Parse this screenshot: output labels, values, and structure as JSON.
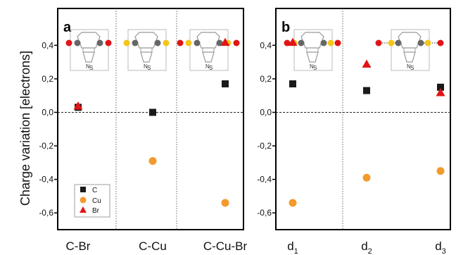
{
  "figure": {
    "ylabel": "Charge variation [electrons]",
    "colors": {
      "C": "#1a1a1a",
      "Cu": "#f39a2d",
      "Br": "#e11515",
      "ring": "#777777"
    }
  },
  "chart_data": [
    {
      "type": "scatter",
      "panel": "a",
      "categories": [
        "C-Br",
        "C-Cu",
        "C-Cu-Br"
      ],
      "ylim": [
        -0.7,
        0.62
      ],
      "yticks": [
        "0,4",
        "0,2",
        "0,0",
        "-0,2",
        "-0,4",
        "-0,6"
      ],
      "ytick_values": [
        0.4,
        0.2,
        0.0,
        -0.2,
        -0.4,
        -0.6
      ],
      "series": [
        {
          "name": "C",
          "marker": "square",
          "values": [
            0.03,
            0.0,
            0.17
          ]
        },
        {
          "name": "Cu",
          "marker": "circle",
          "values": [
            null,
            -0.29,
            -0.54
          ]
        },
        {
          "name": "Br",
          "marker": "triangle",
          "values": [
            0.04,
            null,
            0.42
          ]
        }
      ],
      "legend": "lower-left",
      "zero_line": true,
      "separators": true
    },
    {
      "type": "scatter",
      "panel": "b",
      "categories": [
        {
          "base": "d",
          "sub": "1"
        },
        {
          "base": "d",
          "sub": "2"
        },
        {
          "base": "d",
          "sub": "3"
        }
      ],
      "ylim": [
        -0.7,
        0.62
      ],
      "yticks": [
        "0,4",
        "0,2",
        "0,0",
        "-0,2",
        "-0,4",
        "-0,6"
      ],
      "ytick_values": [
        0.4,
        0.2,
        0.0,
        -0.2,
        -0.4,
        -0.6
      ],
      "series": [
        {
          "name": "C",
          "marker": "square",
          "values": [
            0.17,
            0.13,
            0.15
          ]
        },
        {
          "name": "Cu",
          "marker": "circle",
          "values": [
            -0.54,
            -0.39,
            -0.35
          ]
        },
        {
          "name": "Br",
          "marker": "triangle",
          "values": [
            0.42,
            0.29,
            0.12
          ]
        }
      ],
      "zero_line": true,
      "separators": true
    }
  ]
}
